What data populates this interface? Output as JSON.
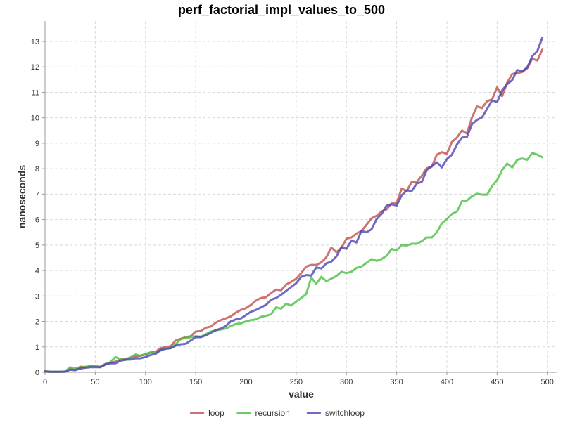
{
  "chart_data": {
    "type": "line",
    "title": "perf_factorial_impl_values_to_500",
    "xlabel": "value",
    "ylabel": "nanoseconds",
    "xlim": [
      0,
      510
    ],
    "ylim": [
      0,
      13.8
    ],
    "x_ticks": [
      0,
      50,
      100,
      150,
      200,
      250,
      300,
      350,
      400,
      450,
      500
    ],
    "y_ticks": [
      0,
      1,
      2,
      3,
      4,
      5,
      6,
      7,
      8,
      9,
      10,
      11,
      12,
      13
    ],
    "grid": true,
    "legend_position": "bottom",
    "x": [
      0,
      5,
      10,
      15,
      20,
      25,
      30,
      35,
      40,
      45,
      50,
      55,
      60,
      65,
      70,
      75,
      80,
      85,
      90,
      95,
      100,
      105,
      110,
      115,
      120,
      125,
      130,
      135,
      140,
      145,
      150,
      155,
      160,
      165,
      170,
      175,
      180,
      185,
      190,
      195,
      200,
      205,
      210,
      215,
      220,
      225,
      230,
      235,
      240,
      245,
      250,
      255,
      260,
      265,
      270,
      275,
      280,
      285,
      290,
      295,
      300,
      305,
      310,
      315,
      320,
      325,
      330,
      335,
      340,
      345,
      350,
      355,
      360,
      365,
      370,
      375,
      380,
      385,
      390,
      395,
      400,
      405,
      410,
      415,
      420,
      425,
      430,
      435,
      440,
      445,
      450,
      455,
      460,
      465,
      470,
      475,
      480,
      485,
      490,
      495
    ],
    "series": [
      {
        "name": "loop",
        "color": "#c0504d",
        "values": [
          0.05,
          0.02,
          0.02,
          0.02,
          0.03,
          0.15,
          0.1,
          0.22,
          0.2,
          0.25,
          0.23,
          0.22,
          0.33,
          0.38,
          0.42,
          0.5,
          0.52,
          0.58,
          0.62,
          0.65,
          0.7,
          0.78,
          0.8,
          0.95,
          1.0,
          1.02,
          1.25,
          1.32,
          1.38,
          1.42,
          1.6,
          1.62,
          1.75,
          1.8,
          1.95,
          2.05,
          2.12,
          2.2,
          2.35,
          2.45,
          2.52,
          2.65,
          2.82,
          2.92,
          2.95,
          3.12,
          3.25,
          3.22,
          3.45,
          3.55,
          3.68,
          3.9,
          4.15,
          4.22,
          4.22,
          4.32,
          4.52,
          4.9,
          4.72,
          4.88,
          5.25,
          5.3,
          5.45,
          5.55,
          5.8,
          6.05,
          6.15,
          6.32,
          6.4,
          6.65,
          6.65,
          7.22,
          7.12,
          7.48,
          7.48,
          7.72,
          8.02,
          8.08,
          8.55,
          8.65,
          8.58,
          9.05,
          9.22,
          9.5,
          9.38,
          10.02,
          10.45,
          10.38,
          10.65,
          10.72,
          11.2,
          10.85,
          11.38,
          11.72,
          11.75,
          11.8,
          11.95,
          12.32,
          12.25,
          12.68
        ]
      },
      {
        "name": "recursion",
        "color": "#4bbf43",
        "values": [
          0.02,
          0.02,
          0.02,
          0.02,
          0.03,
          0.2,
          0.15,
          0.18,
          0.22,
          0.22,
          0.25,
          0.2,
          0.3,
          0.4,
          0.6,
          0.52,
          0.48,
          0.58,
          0.7,
          0.65,
          0.72,
          0.78,
          0.78,
          0.85,
          0.95,
          0.95,
          1.1,
          1.3,
          1.35,
          1.38,
          1.42,
          1.4,
          1.5,
          1.6,
          1.65,
          1.68,
          1.72,
          1.82,
          1.9,
          1.92,
          2.0,
          2.05,
          2.08,
          2.18,
          2.22,
          2.28,
          2.55,
          2.5,
          2.7,
          2.62,
          2.78,
          2.92,
          3.08,
          3.72,
          3.48,
          3.75,
          3.58,
          3.68,
          3.78,
          3.95,
          3.9,
          3.95,
          4.1,
          4.15,
          4.3,
          4.45,
          4.38,
          4.45,
          4.58,
          4.85,
          4.78,
          5.0,
          4.98,
          5.05,
          5.05,
          5.15,
          5.3,
          5.3,
          5.5,
          5.85,
          6.02,
          6.22,
          6.32,
          6.72,
          6.75,
          6.92,
          7.02,
          6.98,
          6.98,
          7.32,
          7.55,
          7.95,
          8.2,
          8.05,
          8.35,
          8.4,
          8.35,
          8.62,
          8.55,
          8.45
        ]
      },
      {
        "name": "switchloop",
        "color": "#4b45b3",
        "values": [
          0.03,
          0.02,
          0.02,
          0.02,
          0.02,
          0.1,
          0.08,
          0.15,
          0.18,
          0.2,
          0.2,
          0.2,
          0.3,
          0.35,
          0.35,
          0.45,
          0.5,
          0.5,
          0.55,
          0.55,
          0.6,
          0.68,
          0.72,
          0.88,
          0.92,
          0.95,
          1.05,
          1.1,
          1.12,
          1.25,
          1.38,
          1.38,
          1.45,
          1.55,
          1.65,
          1.72,
          1.82,
          2.0,
          2.08,
          2.12,
          2.25,
          2.38,
          2.45,
          2.55,
          2.65,
          2.85,
          2.92,
          3.05,
          3.2,
          3.35,
          3.5,
          3.75,
          3.82,
          3.8,
          4.12,
          4.08,
          4.28,
          4.35,
          4.55,
          4.92,
          4.85,
          5.18,
          5.1,
          5.55,
          5.5,
          5.62,
          6.02,
          6.22,
          6.55,
          6.6,
          6.55,
          6.95,
          7.15,
          7.12,
          7.42,
          7.48,
          7.95,
          8.1,
          8.25,
          8.05,
          8.38,
          8.55,
          8.95,
          9.22,
          9.25,
          9.75,
          9.92,
          10.02,
          10.35,
          10.68,
          10.62,
          11.08,
          11.32,
          11.48,
          11.88,
          11.82,
          11.98,
          12.42,
          12.62,
          13.15
        ]
      }
    ]
  }
}
